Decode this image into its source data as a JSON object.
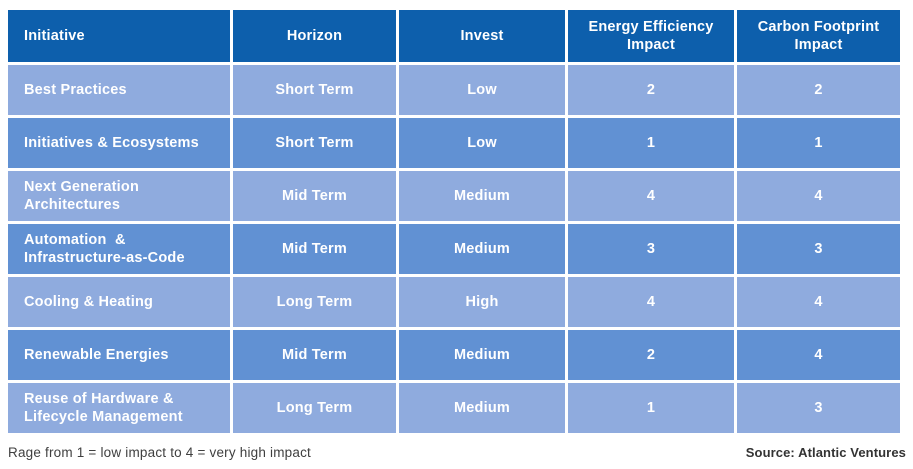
{
  "colors": {
    "header_bg": "#0d5fac",
    "row_light_bg": "#8fabde",
    "row_dark_bg": "#6191d3",
    "cell_text": "#ffffff",
    "note_text": "#3f3f3f",
    "gap": "#ffffff"
  },
  "table": {
    "headers": [
      "Initiative",
      "Horizon",
      "Invest",
      "Energy Efficiency\nImpact",
      "Carbon Footprint\nImpact"
    ],
    "rows": [
      {
        "initiative": "Best Practices",
        "horizon": "Short Term",
        "invest": "Low",
        "energy_impact": "2",
        "carbon_impact": "2"
      },
      {
        "initiative": "Initiatives & Ecosystems",
        "horizon": "Short Term",
        "invest": "Low",
        "energy_impact": "1",
        "carbon_impact": "1"
      },
      {
        "initiative": "Next Generation\nArchitectures",
        "horizon": "Mid Term",
        "invest": "Medium",
        "energy_impact": "4",
        "carbon_impact": "4"
      },
      {
        "initiative": "Automation  &\nInfrastructure-as-Code",
        "horizon": "Mid Term",
        "invest": "Medium",
        "energy_impact": "3",
        "carbon_impact": "3"
      },
      {
        "initiative": "Cooling & Heating",
        "horizon": "Long Term",
        "invest": "High",
        "energy_impact": "4",
        "carbon_impact": "4"
      },
      {
        "initiative": "Renewable Energies",
        "horizon": "Mid Term",
        "invest": "Medium",
        "energy_impact": "2",
        "carbon_impact": "4"
      },
      {
        "initiative": "Reuse of Hardware &\nLifecycle Management",
        "horizon": "Long Term",
        "invest": "Medium",
        "energy_impact": "1",
        "carbon_impact": "3"
      }
    ]
  },
  "footer": {
    "note": "Rage from 1 = low impact to 4 = very high impact",
    "source": "Source: Atlantic Ventures"
  },
  "chart_data": {
    "type": "table",
    "columns": [
      "Initiative",
      "Horizon",
      "Invest",
      "Energy Efficiency Impact",
      "Carbon Footprint Impact"
    ],
    "rows": [
      [
        "Best Practices",
        "Short Term",
        "Low",
        2,
        2
      ],
      [
        "Initiatives & Ecosystems",
        "Short Term",
        "Low",
        1,
        1
      ],
      [
        "Next Generation Architectures",
        "Mid Term",
        "Medium",
        4,
        4
      ],
      [
        "Automation & Infrastructure-as-Code",
        "Mid Term",
        "Medium",
        3,
        3
      ],
      [
        "Cooling & Heating",
        "Long Term",
        "High",
        4,
        4
      ],
      [
        "Renewable Energies",
        "Mid Term",
        "Medium",
        2,
        4
      ],
      [
        "Reuse of Hardware & Lifecycle Management",
        "Long Term",
        "Medium",
        1,
        3
      ]
    ],
    "footnote": "Rage from 1 = low impact to 4 = very high impact",
    "source": "Source: Atlantic Ventures",
    "value_range": [
      1,
      4
    ]
  }
}
